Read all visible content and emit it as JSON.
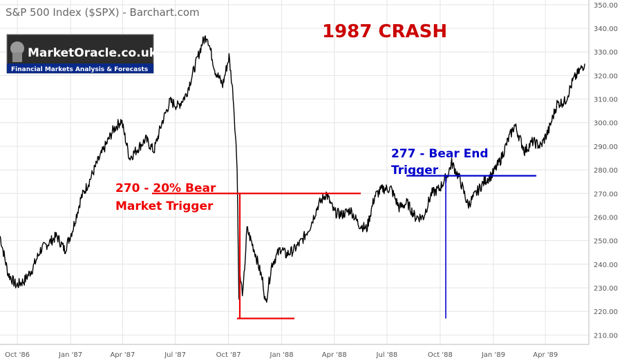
{
  "chart_data": {
    "type": "line",
    "title": "S&P 500 Index ($SPX) - Barchart.com",
    "headline": "1987 CRASH",
    "x_tick_labels": [
      "Oct '86",
      "Jan '87",
      "Apr '87",
      "Jul '87",
      "Oct '87",
      "Jan '88",
      "Apr '88",
      "Jul '88",
      "Oct '88",
      "Jan '89",
      "Apr '89"
    ],
    "y_tick_labels": [
      "350.00",
      "340.00",
      "330.00",
      "320.00",
      "310.00",
      "300.00",
      "290.00",
      "280.00",
      "270.00",
      "260.00",
      "250.00",
      "240.00",
      "230.00",
      "220.00",
      "210.00"
    ],
    "ylim": [
      206,
      352
    ],
    "xlim": [
      "1986-09-01",
      "1989-06-15"
    ],
    "grid": true,
    "series": [
      {
        "color": "#000000",
        "points": [
          [
            "1986-09-01",
            252
          ],
          [
            "1986-09-15",
            236
          ],
          [
            "1986-09-29",
            231
          ],
          [
            "1986-10-13",
            233
          ],
          [
            "1986-10-27",
            238
          ],
          [
            "1986-11-10",
            246
          ],
          [
            "1986-11-24",
            249
          ],
          [
            "1986-12-08",
            252
          ],
          [
            "1986-12-22",
            246
          ],
          [
            "1987-01-05",
            255
          ],
          [
            "1987-01-19",
            268
          ],
          [
            "1987-02-02",
            275
          ],
          [
            "1987-02-16",
            283
          ],
          [
            "1987-03-02",
            290
          ],
          [
            "1987-03-16",
            297
          ],
          [
            "1987-03-30",
            301
          ],
          [
            "1987-04-13",
            285
          ],
          [
            "1987-04-27",
            289
          ],
          [
            "1987-05-11",
            293
          ],
          [
            "1987-05-25",
            288
          ],
          [
            "1987-06-08",
            300
          ],
          [
            "1987-06-22",
            309
          ],
          [
            "1987-07-06",
            307
          ],
          [
            "1987-07-20",
            312
          ],
          [
            "1987-08-03",
            323
          ],
          [
            "1987-08-17",
            334
          ],
          [
            "1987-08-25",
            337
          ],
          [
            "1987-09-08",
            322
          ],
          [
            "1987-09-21",
            316
          ],
          [
            "1987-10-02",
            328
          ],
          [
            "1987-10-09",
            312
          ],
          [
            "1987-10-16",
            282
          ],
          [
            "1987-10-19",
            225
          ],
          [
            "1987-10-20",
            236
          ],
          [
            "1987-10-26",
            227
          ],
          [
            "1987-11-02",
            255
          ],
          [
            "1987-11-16",
            245
          ],
          [
            "1987-11-30",
            232
          ],
          [
            "1987-12-04",
            223
          ],
          [
            "1987-12-15",
            240
          ],
          [
            "1987-12-31",
            247
          ],
          [
            "1988-01-08",
            244
          ],
          [
            "1988-01-22",
            246
          ],
          [
            "1988-02-05",
            250
          ],
          [
            "1988-02-19",
            256
          ],
          [
            "1988-03-04",
            265
          ],
          [
            "1988-03-18",
            270
          ],
          [
            "1988-04-01",
            262
          ],
          [
            "1988-04-14",
            261
          ],
          [
            "1988-04-29",
            263
          ],
          [
            "1988-05-13",
            257
          ],
          [
            "1988-05-27",
            255
          ],
          [
            "1988-06-10",
            269
          ],
          [
            "1988-06-24",
            272
          ],
          [
            "1988-07-08",
            272
          ],
          [
            "1988-07-22",
            264
          ],
          [
            "1988-08-05",
            266
          ],
          [
            "1988-08-19",
            260
          ],
          [
            "1988-09-02",
            260
          ],
          [
            "1988-09-16",
            270
          ],
          [
            "1988-09-30",
            272
          ],
          [
            "1988-10-14",
            278
          ],
          [
            "1988-10-21",
            283
          ],
          [
            "1988-11-04",
            276
          ],
          [
            "1988-11-18",
            265
          ],
          [
            "1988-12-02",
            270
          ],
          [
            "1988-12-16",
            275
          ],
          [
            "1988-12-30",
            278
          ],
          [
            "1989-01-13",
            284
          ],
          [
            "1989-01-27",
            293
          ],
          [
            "1989-02-07",
            299
          ],
          [
            "1989-02-24",
            288
          ],
          [
            "1989-03-10",
            292
          ],
          [
            "1989-03-24",
            290
          ],
          [
            "1989-04-07",
            297
          ],
          [
            "1989-04-21",
            308
          ],
          [
            "1989-05-05",
            309
          ],
          [
            "1989-05-19",
            318
          ],
          [
            "1989-06-02",
            323
          ],
          [
            "1989-06-08",
            325
          ]
        ]
      }
    ],
    "annotations": {
      "red_label_1": "270 - 20% Bear",
      "red_label_2": "Market Trigger",
      "blue_label_1": "277 - Bear End",
      "blue_label_2": "Trigger",
      "red_level": 270,
      "red_bottom": 217,
      "blue_level": 277.5,
      "blue_bottom": 217
    },
    "colors": {
      "red": "#ee0000",
      "blue": "#0000cc",
      "headline": "#cc0000",
      "grid": "#e4e4e4"
    }
  },
  "logo": {
    "name": "MarketOracle.co.uk",
    "tagline": "Financial Markets Analysis & Forecasts"
  }
}
